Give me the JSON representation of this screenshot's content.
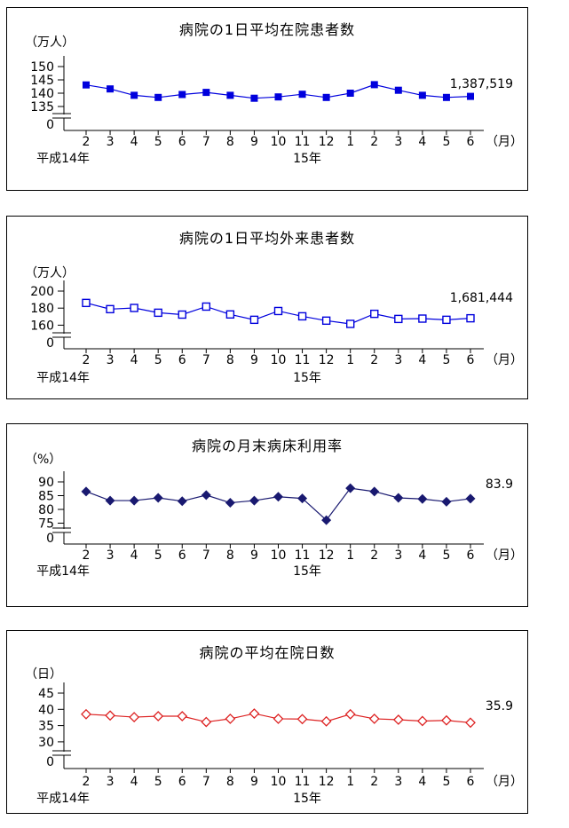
{
  "page": {
    "background": "#ffffff"
  },
  "chart_data": [
    {
      "type": "line",
      "title": "病院の1日平均在院患者数",
      "unit_label": "（万人）",
      "x_axis_unit_label": "（月）",
      "era_label_left": "平成14年",
      "era_label_right": "15年",
      "categories": [
        "2",
        "3",
        "4",
        "5",
        "6",
        "7",
        "8",
        "9",
        "10",
        "11",
        "12",
        "1",
        "2",
        "3",
        "4",
        "5",
        "6"
      ],
      "values": [
        143.1,
        141.6,
        139.2,
        138.4,
        139.5,
        140.3,
        139.2,
        138.1,
        138.6,
        139.6,
        138.4,
        140.0,
        143.2,
        141.1,
        139.2,
        138.4,
        138.8
      ],
      "y_ticks": [
        150,
        145,
        140,
        135
      ],
      "y_axis_zero_label": "0",
      "axis_break": true,
      "ylim_shown": [
        135,
        150
      ],
      "end_annotation": "1,387,519",
      "line_color": "#0000dd",
      "marker": "square-filled"
    },
    {
      "type": "line",
      "title": "病院の1日平均外来患者数",
      "unit_label": "（万人）",
      "x_axis_unit_label": "（月）",
      "era_label_left": "平成14年",
      "era_label_right": "15年",
      "categories": [
        "2",
        "3",
        "4",
        "5",
        "6",
        "7",
        "8",
        "9",
        "10",
        "11",
        "12",
        "1",
        "2",
        "3",
        "4",
        "5",
        "6"
      ],
      "values": [
        186.1,
        178.8,
        180.2,
        174.6,
        172.4,
        181.8,
        172.6,
        166.3,
        176.6,
        170.4,
        165.3,
        161.5,
        173.3,
        167.3,
        167.7,
        166.3,
        168.1
      ],
      "y_ticks": [
        200,
        180,
        160
      ],
      "y_axis_zero_label": "0",
      "axis_break": true,
      "ylim_shown": [
        160,
        200
      ],
      "end_annotation": "1,681,444",
      "line_color": "#0000dd",
      "marker": "square-open"
    },
    {
      "type": "line",
      "title": "病院の月末病床利用率",
      "unit_label": "（%）",
      "x_axis_unit_label": "（月）",
      "era_label_left": "平成14年",
      "era_label_right": "15年",
      "categories": [
        "2",
        "3",
        "4",
        "5",
        "6",
        "7",
        "8",
        "9",
        "10",
        "11",
        "12",
        "1",
        "2",
        "3",
        "4",
        "5",
        "6"
      ],
      "values": [
        86.5,
        83.2,
        83.2,
        84.2,
        83.0,
        85.2,
        82.4,
        83.2,
        84.6,
        84.0,
        76.1,
        87.7,
        86.5,
        84.2,
        83.8,
        82.8,
        83.9
      ],
      "y_ticks": [
        90,
        85,
        80,
        75
      ],
      "y_axis_zero_label": "0",
      "axis_break": true,
      "ylim_shown": [
        75,
        90
      ],
      "end_annotation": "83.9",
      "line_color": "#191970",
      "marker": "diamond-filled"
    },
    {
      "type": "line",
      "title": "病院の平均在院日数",
      "unit_label": "（日）",
      "x_axis_unit_label": "（月）",
      "era_label_left": "平成14年",
      "era_label_right": "15年",
      "categories": [
        "2",
        "3",
        "4",
        "5",
        "6",
        "7",
        "8",
        "9",
        "10",
        "11",
        "12",
        "1",
        "2",
        "3",
        "4",
        "5",
        "6"
      ],
      "values": [
        38.5,
        38.1,
        37.6,
        37.9,
        37.9,
        36.1,
        37.1,
        38.7,
        37.1,
        37.0,
        36.3,
        38.5,
        37.1,
        36.8,
        36.4,
        36.6,
        35.9
      ],
      "y_ticks": [
        45,
        40,
        35,
        30
      ],
      "y_axis_zero_label": "0",
      "axis_break": true,
      "ylim_shown": [
        30,
        45
      ],
      "end_annotation": "35.9",
      "line_color": "#dd2222",
      "marker": "diamond-open"
    }
  ]
}
